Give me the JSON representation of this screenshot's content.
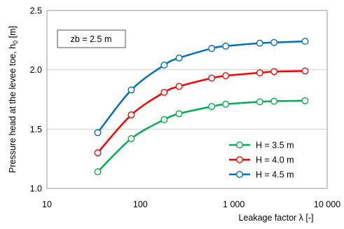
{
  "chart_data": {
    "type": "line",
    "annotation": "zb = 2.5 m",
    "xlabel": "Leakage factor  λ  [-]",
    "ylabel_main": "Pressure head at the levee toe, h",
    "ylabel_sub": "0",
    "ylabel_unit": "  [m]",
    "xscale": "log",
    "xlim": [
      10,
      10000
    ],
    "ylim": [
      1.0,
      2.5
    ],
    "grid": "horizontal",
    "legend_position": "bottom-right",
    "x_ticks": [
      {
        "value": 10,
        "label": "10"
      },
      {
        "value": 100,
        "label": "100"
      },
      {
        "value": 1000,
        "label": "1 000"
      },
      {
        "value": 10000,
        "label": "10 000"
      }
    ],
    "y_ticks": [
      {
        "value": 1.0,
        "label": "1.0"
      },
      {
        "value": 1.5,
        "label": "1.5"
      },
      {
        "value": 2.0,
        "label": "2.0"
      },
      {
        "value": 2.5,
        "label": "2.5"
      }
    ],
    "x": [
      35,
      80,
      180,
      260,
      580,
      820,
      1900,
      2700,
      5800
    ],
    "series": [
      {
        "name": "H = 3.5 m",
        "color": "#00b050",
        "values": [
          1.14,
          1.42,
          1.58,
          1.63,
          1.69,
          1.71,
          1.73,
          1.735,
          1.74
        ]
      },
      {
        "name": "H = 4.0 m",
        "color": "#ff0000",
        "values": [
          1.3,
          1.62,
          1.81,
          1.86,
          1.93,
          1.95,
          1.975,
          1.985,
          1.99
        ]
      },
      {
        "name": "H = 4.5 m",
        "color": "#0070c0",
        "values": [
          1.47,
          1.83,
          2.04,
          2.1,
          2.18,
          2.2,
          2.225,
          2.23,
          2.24
        ]
      }
    ]
  }
}
